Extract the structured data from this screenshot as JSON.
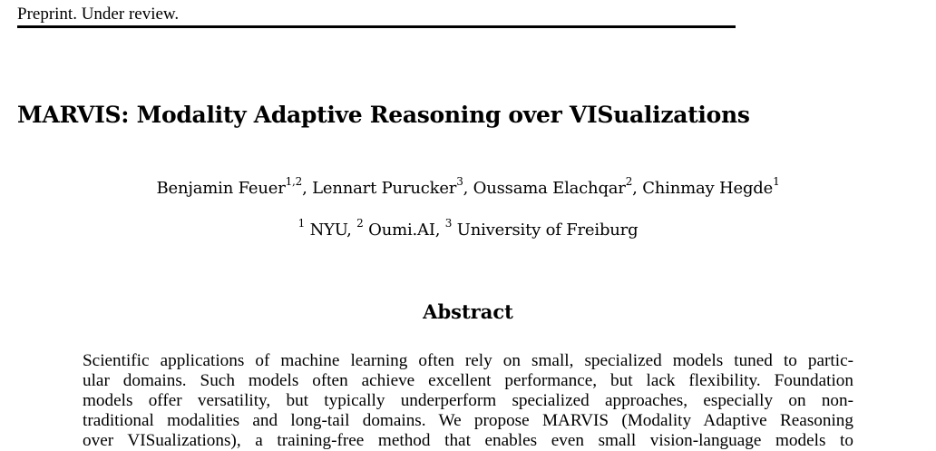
{
  "header": {
    "text": "Preprint. Under review."
  },
  "title": "MARVIS: Modality Adaptive Reasoning over VISualizations",
  "authors": [
    {
      "name": "Benjamin Feuer",
      "sup": "1,2",
      "sep": ", "
    },
    {
      "name": "Lennart Purucker",
      "sup": "3",
      "sep": ", "
    },
    {
      "name": "Oussama Elachqar",
      "sup": "2",
      "sep": ", "
    },
    {
      "name": "Chinmay Hegde",
      "sup": "1",
      "sep": ""
    }
  ],
  "affiliations": [
    {
      "sup": "1",
      "name": " NYU",
      "sep": ", "
    },
    {
      "sup": "2",
      "name": " Oumi.AI",
      "sep": ", "
    },
    {
      "sup": "3",
      "name": " University of Freiburg",
      "sep": ""
    }
  ],
  "abstract": {
    "heading": "Abstract",
    "lines": [
      "Scientific applications of machine learning often rely on small, specialized models tuned to partic-",
      "ular domains. Such models often achieve excellent performance, but lack flexibility. Foundation",
      "models offer versatility, but typically underperform specialized approaches, especially on non-",
      "traditional modalities and long-tail domains. We propose MARVIS (Modality Adaptive Reasoning",
      "over VISualizations), a training-free method that enables even small vision-language models to"
    ]
  }
}
